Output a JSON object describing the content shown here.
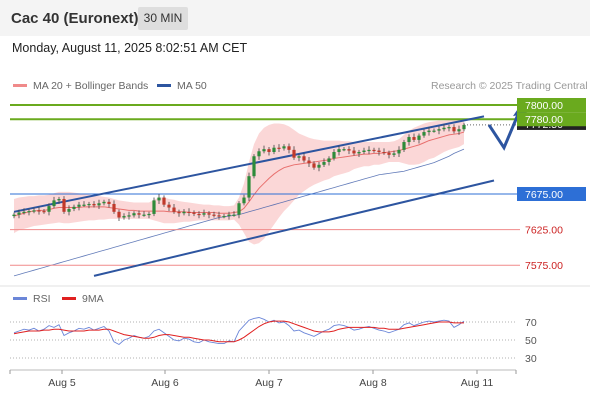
{
  "header": {
    "title": "Cac 40 (Euronext)",
    "timeframe": "30 MIN",
    "datetime": "Monday, August 11, 2025 8:02:51 AM CET"
  },
  "legend": {
    "ma20": "MA 20 + Bollinger Bands",
    "ma50": "MA 50",
    "credit": "Research © 2025 Trading Central",
    "rsi": "RSI",
    "rsi_ma": "9MA"
  },
  "colors": {
    "candle_up": "#2e8b3a",
    "candle_down": "#c0392b",
    "bollinger_fill": "#f9c9c9",
    "ma20": "#e8706e",
    "ma50": "#3b5aa8",
    "channel": "#2d55a0",
    "target_line": "#6aaa1e",
    "pivot_line": "#2d6fd6",
    "support_line": "#f08a8a",
    "rsi": "#6b86d8",
    "rsi_ma": "#e02020",
    "current_price_tag": "#222222"
  },
  "chart_data": {
    "type": "candlestick",
    "x_labels": [
      "Aug 5",
      "Aug 6",
      "Aug 7",
      "Aug 8",
      "Aug 11"
    ],
    "ylim": [
      7550,
      7810
    ],
    "levels": [
      {
        "value": 7800.0,
        "label": "7800.00",
        "role": "target"
      },
      {
        "value": 7780.0,
        "label": "7780.00",
        "role": "target"
      },
      {
        "value": 7675.0,
        "label": "7675.00",
        "role": "pivot"
      },
      {
        "value": 7625.0,
        "label": "7625.00",
        "role": "support"
      },
      {
        "value": 7575.0,
        "label": "7575.00",
        "role": "support"
      }
    ],
    "current_price_label": "7772.50",
    "channel": {
      "upper": [
        [
          0,
          7650
        ],
        [
          94,
          7784
        ]
      ],
      "lower": [
        [
          16,
          7560
        ],
        [
          96,
          7694
        ]
      ]
    },
    "closes": [
      7646,
      7649,
      7650,
      7651,
      7652,
      7651,
      7650,
      7658,
      7666,
      7668,
      7650,
      7654,
      7657,
      7660,
      7660,
      7661,
      7659,
      7662,
      7664,
      7661,
      7650,
      7642,
      7644,
      7645,
      7648,
      7646,
      7646,
      7647,
      7666,
      7670,
      7660,
      7656,
      7650,
      7648,
      7650,
      7649,
      7647,
      7646,
      7648,
      7646,
      7645,
      7644,
      7644,
      7646,
      7646,
      7662,
      7670,
      7700,
      7728,
      7735,
      7738,
      7734,
      7740,
      7739,
      7742,
      7737,
      7726,
      7728,
      7722,
      7718,
      7712,
      7716,
      7720,
      7725,
      7734,
      7738,
      7738,
      7736,
      7732,
      7734,
      7736,
      7737,
      7736,
      7734,
      7733,
      7730,
      7732,
      7737,
      7748,
      7755,
      7751,
      7757,
      7762,
      7764,
      7764,
      7766,
      7768,
      7769,
      7763,
      7766,
      7772
    ],
    "ma20": [
      7644,
      7646,
      7648,
      7650,
      7651,
      7652,
      7652,
      7653,
      7655,
      7656,
      7656,
      7656,
      7656,
      7656,
      7657,
      7657,
      7657,
      7657,
      7657,
      7656,
      7655,
      7654,
      7653,
      7652,
      7652,
      7651,
      7651,
      7651,
      7651,
      7651,
      7651,
      7650,
      7650,
      7650,
      7650,
      7649,
      7649,
      7649,
      7649,
      7649,
      7649,
      7648,
      7648,
      7648,
      7649,
      7650,
      7655,
      7664,
      7674,
      7683,
      7690,
      7697,
      7703,
      7708,
      7712,
      7714,
      7716,
      7717,
      7718,
      7719,
      7720,
      7721,
      7722,
      7723,
      7725,
      7726,
      7727,
      7728,
      7729,
      7730,
      7731,
      7731,
      7732,
      7732,
      7733,
      7734,
      7735,
      7736,
      7738,
      7740,
      7742,
      7744,
      7747,
      7750,
      7752,
      7754,
      7756,
      7758,
      7759,
      7760,
      7762
    ],
    "bollinger": {
      "upper": [
        7668,
        7670,
        7671,
        7672,
        7672,
        7673,
        7673,
        7674,
        7676,
        7678,
        7678,
        7678,
        7677,
        7676,
        7675,
        7674,
        7673,
        7672,
        7671,
        7670,
        7668,
        7666,
        7665,
        7664,
        7663,
        7663,
        7663,
        7663,
        7667,
        7670,
        7670,
        7668,
        7667,
        7665,
        7664,
        7663,
        7662,
        7661,
        7660,
        7660,
        7659,
        7659,
        7658,
        7658,
        7659,
        7670,
        7690,
        7720,
        7745,
        7760,
        7768,
        7772,
        7774,
        7774,
        7773,
        7770,
        7765,
        7760,
        7757,
        7754,
        7752,
        7751,
        7750,
        7750,
        7750,
        7750,
        7749,
        7749,
        7748,
        7748,
        7748,
        7748,
        7748,
        7748,
        7748,
        7748,
        7749,
        7752,
        7758,
        7764,
        7768,
        7771,
        7774,
        7776,
        7777,
        7778,
        7778,
        7779,
        7779,
        7779,
        7779
      ],
      "lower": [
        7620,
        7624,
        7626,
        7628,
        7630,
        7631,
        7632,
        7633,
        7634,
        7635,
        7634,
        7634,
        7635,
        7636,
        7637,
        7638,
        7638,
        7639,
        7639,
        7640,
        7640,
        7640,
        7640,
        7640,
        7640,
        7640,
        7640,
        7640,
        7638,
        7636,
        7634,
        7634,
        7634,
        7635,
        7636,
        7636,
        7637,
        7638,
        7638,
        7638,
        7638,
        7638,
        7638,
        7638,
        7639,
        7632,
        7620,
        7608,
        7604,
        7606,
        7612,
        7622,
        7632,
        7642,
        7651,
        7658,
        7666,
        7674,
        7679,
        7684,
        7688,
        7691,
        7694,
        7696,
        7700,
        7702,
        7704,
        7706,
        7710,
        7712,
        7714,
        7714,
        7716,
        7716,
        7718,
        7720,
        7720,
        7720,
        7718,
        7716,
        7716,
        7717,
        7720,
        7724,
        7726,
        7730,
        7734,
        7737,
        7739,
        7741,
        7745
      ]
    },
    "ma50": [
      7560,
      7562,
      7564,
      7566,
      7568,
      7570,
      7572,
      7574,
      7576,
      7578,
      7580,
      7582,
      7584,
      7586,
      7588,
      7590,
      7592,
      7594,
      7596,
      7598,
      7600,
      7602,
      7604,
      7606,
      7608,
      7610,
      7612,
      7614,
      7616,
      7618,
      7620,
      7622,
      7624,
      7626,
      7628,
      7630,
      7632,
      7634,
      7636,
      7638,
      7640,
      7642,
      7643,
      7644,
      7645,
      7646,
      7648,
      7650,
      7652,
      7654,
      7656,
      7658,
      7660,
      7662,
      7664,
      7666,
      7668,
      7670,
      7672,
      7674,
      7676,
      7678,
      7680,
      7682,
      7684,
      7686,
      7688,
      7690,
      7692,
      7694,
      7696,
      7698,
      7700,
      7702,
      7703,
      7704,
      7705,
      7706,
      7707,
      7709,
      7711,
      7713,
      7715,
      7717,
      7719,
      7722,
      7725,
      7728,
      7732,
      7735,
      7738
    ],
    "projection": [
      [
        95,
        7772
      ],
      [
        98,
        7740
      ],
      [
        101,
        7790
      ]
    ],
    "rsi": {
      "ticks": [
        70,
        50,
        30
      ],
      "ylim": [
        20,
        80
      ],
      "rsi": [
        58,
        60,
        62,
        61,
        63,
        60,
        62,
        66,
        64,
        67,
        55,
        58,
        60,
        63,
        62,
        64,
        61,
        63,
        65,
        60,
        48,
        45,
        50,
        52,
        55,
        53,
        52,
        54,
        60,
        62,
        58,
        54,
        50,
        49,
        52,
        51,
        48,
        47,
        50,
        48,
        47,
        46,
        46,
        49,
        48,
        60,
        66,
        72,
        74,
        75,
        73,
        70,
        72,
        69,
        70,
        66,
        60,
        61,
        58,
        56,
        54,
        57,
        60,
        62,
        66,
        67,
        66,
        64,
        61,
        62,
        64,
        65,
        63,
        61,
        60,
        58,
        60,
        62,
        67,
        69,
        66,
        68,
        70,
        71,
        70,
        71,
        72,
        71,
        64,
        67,
        71
      ],
      "rsi_ma": [
        57,
        58,
        59,
        60,
        60,
        60,
        61,
        61,
        62,
        62,
        61,
        60,
        60,
        60,
        60,
        61,
        61,
        61,
        62,
        62,
        60,
        58,
        56,
        55,
        54,
        53,
        52,
        52,
        53,
        55,
        56,
        56,
        55,
        54,
        53,
        53,
        52,
        51,
        50,
        50,
        49,
        48,
        48,
        48,
        48,
        50,
        53,
        57,
        61,
        65,
        68,
        70,
        71,
        71,
        71,
        70,
        68,
        66,
        64,
        62,
        60,
        59,
        59,
        59,
        60,
        62,
        63,
        64,
        64,
        64,
        64,
        64,
        64,
        63,
        63,
        62,
        62,
        62,
        63,
        64,
        65,
        66,
        67,
        68,
        69,
        70,
        70,
        70,
        69,
        69,
        69
      ]
    }
  }
}
